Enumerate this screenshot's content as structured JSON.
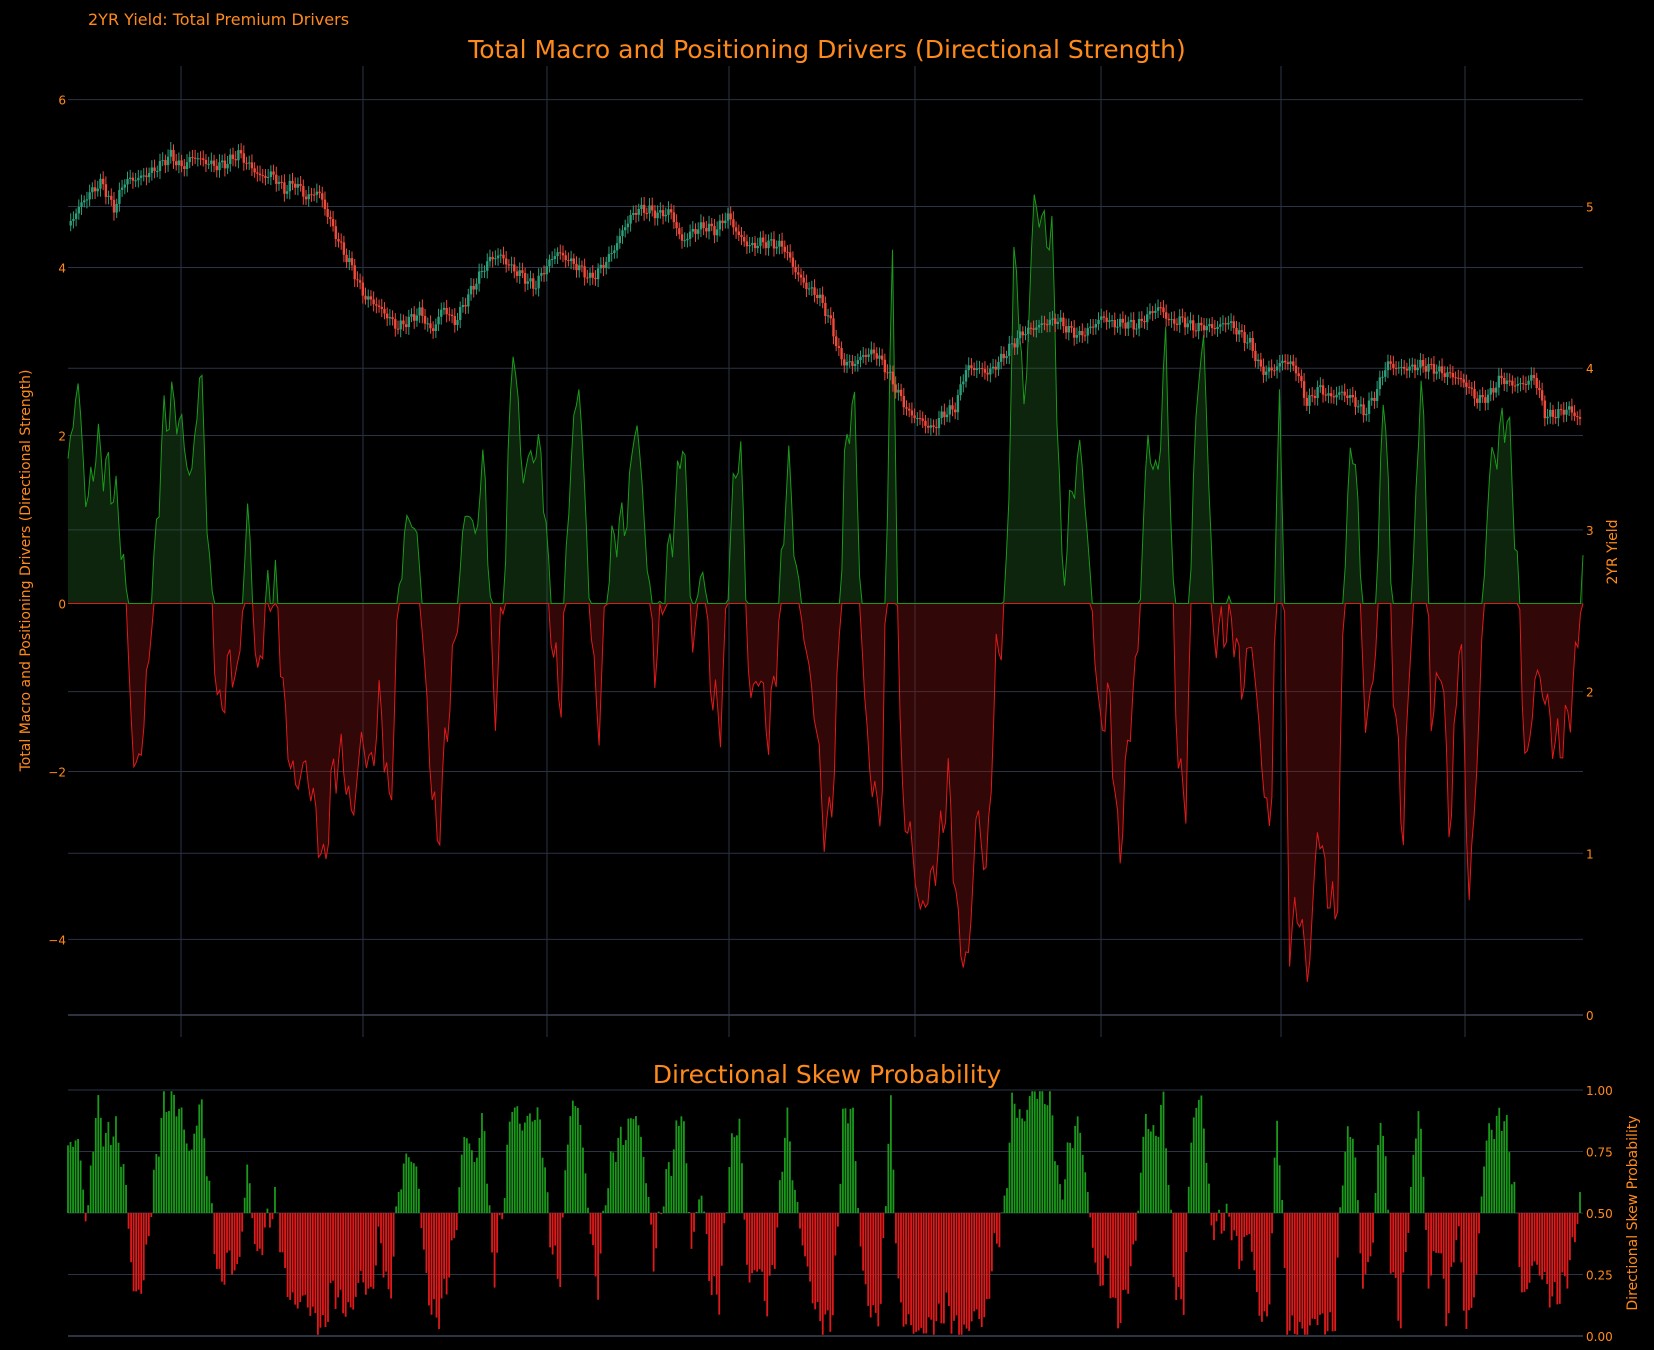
{
  "header": {
    "page_title": "2YR Yield: Total Premium Drivers"
  },
  "colors": {
    "background": "#000000",
    "text": "#ff8a1c",
    "grid": "#2b3344",
    "positive": "#1a9a1a",
    "negative": "#e01a1a",
    "candle_up": "#2e9e7a",
    "candle_down": "#f04a3a"
  },
  "chart_data": [
    {
      "type": "area",
      "title": "Total Macro and Positioning Drivers (Directional Strength)",
      "ylabel": "Total Macro and Positioning Drivers (Directional Strength)",
      "ylim": [
        -4.9,
        6.4
      ],
      "yticks": [
        -4,
        -2,
        0,
        2,
        4,
        6
      ],
      "ytick_labels": [
        "−4",
        "−2",
        "0",
        "2",
        "4",
        "6"
      ],
      "grid": true,
      "n_points": 600,
      "series": [
        {
          "kind": "filled-line",
          "values_sampled": [
            1.6,
            2.7,
            1.1,
            1.9,
            1.6,
            1.3,
            0.4,
            -2.1,
            -1.5,
            0.2,
            2.1,
            2.4,
            2.1,
            1.4,
            2.9,
            0.3,
            -1.4,
            -0.7,
            -0.9,
            1.2,
            -1.0,
            0.1,
            0.2,
            -1.5,
            -2.2,
            -1.9,
            -2.4,
            -3.2,
            -2.0,
            -1.8,
            -2.6,
            -1.6,
            -2.0,
            -1.1,
            -2.6,
            0.3,
            1.1,
            0.7,
            -1.5,
            -2.9,
            -1.5,
            -0.3,
            1.2,
            0.8,
            1.8,
            -1.4,
            0.1,
            3.2,
            1.5,
            1.8,
            1.8,
            -0.2,
            -1.3,
            1.6,
            2.7,
            0.2,
            -1.6,
            0.4,
            0.9,
            1.0,
            2.3,
            0.8,
            -0.8,
            0.2,
            1.0,
            2.1,
            -0.6,
            0.6,
            -1.1,
            -1.4,
            1.0,
            2.0,
            -1.2,
            -0.8,
            -1.6,
            -0.4,
            1.8,
            0.3,
            -0.6,
            -1.4,
            -2.9,
            -1.9,
            1.6,
            2.6,
            -1.0,
            -2.3,
            -2.4,
            4.4,
            -2.3,
            -2.8,
            -3.7,
            -3.4,
            -2.9,
            -2.1,
            -3.9,
            -4.4,
            -2.4,
            -3.3,
            -0.7,
            -0.1,
            4.4,
            2.2,
            4.8,
            4.5,
            4.3,
            0.2,
            1.3,
            1.9,
            0.2,
            -1.5,
            -1.1,
            -3.1,
            -1.6,
            -0.5,
            2.0,
            1.4,
            3.2,
            -1.3,
            -2.7,
            2.2,
            3.2,
            -0.4,
            -0.3,
            -0.2,
            -1.0,
            -0.4,
            -1.8,
            -2.9,
            3.0,
            -4.0,
            -3.6,
            -4.5,
            -2.6,
            -3.4,
            -3.8,
            1.3,
            1.9,
            -1.5,
            -0.8,
            2.9,
            -1.0,
            -2.8,
            0.2,
            3.0,
            -1.5,
            -0.6,
            -2.8,
            -0.1,
            -3.6,
            -1.4,
            1.5,
            1.9,
            2.3,
            0.6,
            -2.1,
            -0.8,
            -1.1,
            -1.7,
            -1.6,
            -1.0,
            0.4
          ]
        }
      ],
      "candles": {
        "yaxis": "2YR Yield",
        "close_sampled": [
          4.87,
          5.0,
          5.09,
          5.15,
          4.98,
          5.16,
          5.17,
          5.2,
          5.25,
          5.32,
          5.24,
          5.31,
          5.28,
          5.25,
          5.27,
          5.33,
          5.25,
          5.18,
          5.2,
          5.1,
          5.15,
          5.05,
          5.1,
          4.92,
          4.75,
          4.62,
          4.45,
          4.4,
          4.33,
          4.25,
          4.3,
          4.35,
          4.22,
          4.38,
          4.28,
          4.42,
          4.55,
          4.67,
          4.7,
          4.62,
          4.57,
          4.5,
          4.62,
          4.72,
          4.67,
          4.62,
          4.55,
          4.63,
          4.73,
          4.88,
          4.98,
          4.98,
          4.95,
          4.97,
          4.78,
          4.85,
          4.88,
          4.85,
          4.95,
          4.82,
          4.75,
          4.78,
          4.77,
          4.75,
          4.6,
          4.5,
          4.45,
          4.3,
          4.05,
          4.02,
          4.08,
          4.1,
          3.99,
          3.85,
          3.72,
          3.68,
          3.62,
          3.72,
          3.75,
          4.0,
          4.0,
          3.97,
          4.05,
          4.14,
          4.22,
          4.25,
          4.28,
          4.3,
          4.24,
          4.2,
          4.25,
          4.32,
          4.27,
          4.28,
          4.26,
          4.33,
          4.38,
          4.28,
          4.3,
          4.25,
          4.26,
          4.25,
          4.29,
          4.22,
          4.15,
          3.98,
          3.99,
          4.05,
          4.0,
          3.78,
          3.88,
          3.82,
          3.85,
          3.81,
          3.72,
          3.84,
          4.03,
          4.0,
          4.0,
          4.02,
          4.0,
          3.97,
          3.95,
          3.9,
          3.8,
          3.83,
          3.94,
          3.9,
          3.9,
          3.95,
          3.7,
          3.72,
          3.75,
          3.68
        ]
      }
    },
    {
      "type": "bar",
      "title": "Directional Skew Probability",
      "ylabel": "Directional Skew Probability",
      "ylim": [
        0,
        1
      ],
      "baseline": 0.5,
      "yticks": [
        0,
        0.25,
        0.5,
        0.75,
        1
      ],
      "ytick_labels": [
        "0.00",
        "0.25",
        "0.50",
        "0.75",
        "1.00"
      ],
      "grid": true,
      "n_points": 600,
      "values_sampled": [
        0.75,
        0.82,
        0.45,
        0.95,
        0.8,
        0.85,
        0.66,
        0.15,
        0.22,
        0.6,
        0.92,
        0.98,
        0.9,
        0.72,
        0.98,
        0.58,
        0.2,
        0.32,
        0.25,
        0.7,
        0.3,
        0.45,
        0.55,
        0.22,
        0.12,
        0.16,
        0.08,
        0.02,
        0.2,
        0.12,
        0.1,
        0.25,
        0.15,
        0.42,
        0.12,
        0.6,
        0.75,
        0.66,
        0.18,
        0.06,
        0.2,
        0.42,
        0.85,
        0.7,
        0.9,
        0.22,
        0.52,
        0.96,
        0.85,
        0.9,
        0.88,
        0.42,
        0.2,
        0.9,
        0.95,
        0.55,
        0.16,
        0.62,
        0.78,
        0.82,
        0.92,
        0.72,
        0.3,
        0.58,
        0.74,
        0.95,
        0.35,
        0.62,
        0.2,
        0.15,
        0.72,
        0.9,
        0.2,
        0.3,
        0.12,
        0.4,
        0.92,
        0.56,
        0.32,
        0.12,
        0.04,
        0.1,
        0.88,
        0.94,
        0.28,
        0.08,
        0.1,
        0.98,
        0.1,
        0.05,
        0.01,
        0.04,
        0.06,
        0.12,
        0.03,
        0.01,
        0.1,
        0.05,
        0.35,
        0.48,
        0.98,
        0.86,
        1.0,
        0.99,
        0.96,
        0.55,
        0.78,
        0.88,
        0.54,
        0.2,
        0.3,
        0.05,
        0.18,
        0.4,
        0.9,
        0.8,
        0.96,
        0.25,
        0.08,
        0.9,
        0.97,
        0.44,
        0.46,
        0.48,
        0.3,
        0.44,
        0.1,
        0.05,
        0.95,
        0.01,
        0.04,
        0.0,
        0.08,
        0.05,
        0.02,
        0.75,
        0.85,
        0.2,
        0.35,
        0.96,
        0.3,
        0.05,
        0.55,
        0.97,
        0.2,
        0.4,
        0.05,
        0.48,
        0.02,
        0.22,
        0.8,
        0.86,
        0.9,
        0.62,
        0.12,
        0.3,
        0.25,
        0.15,
        0.18,
        0.3,
        0.55
      ]
    }
  ],
  "axes": {
    "top_right": {
      "label": "2YR Yield",
      "ylim": [
        0,
        5.3
      ],
      "yticks": [
        0,
        1,
        2,
        3,
        4,
        5
      ],
      "ytick_labels": [
        "0",
        "1",
        "2",
        "3",
        "4",
        "5"
      ]
    }
  }
}
